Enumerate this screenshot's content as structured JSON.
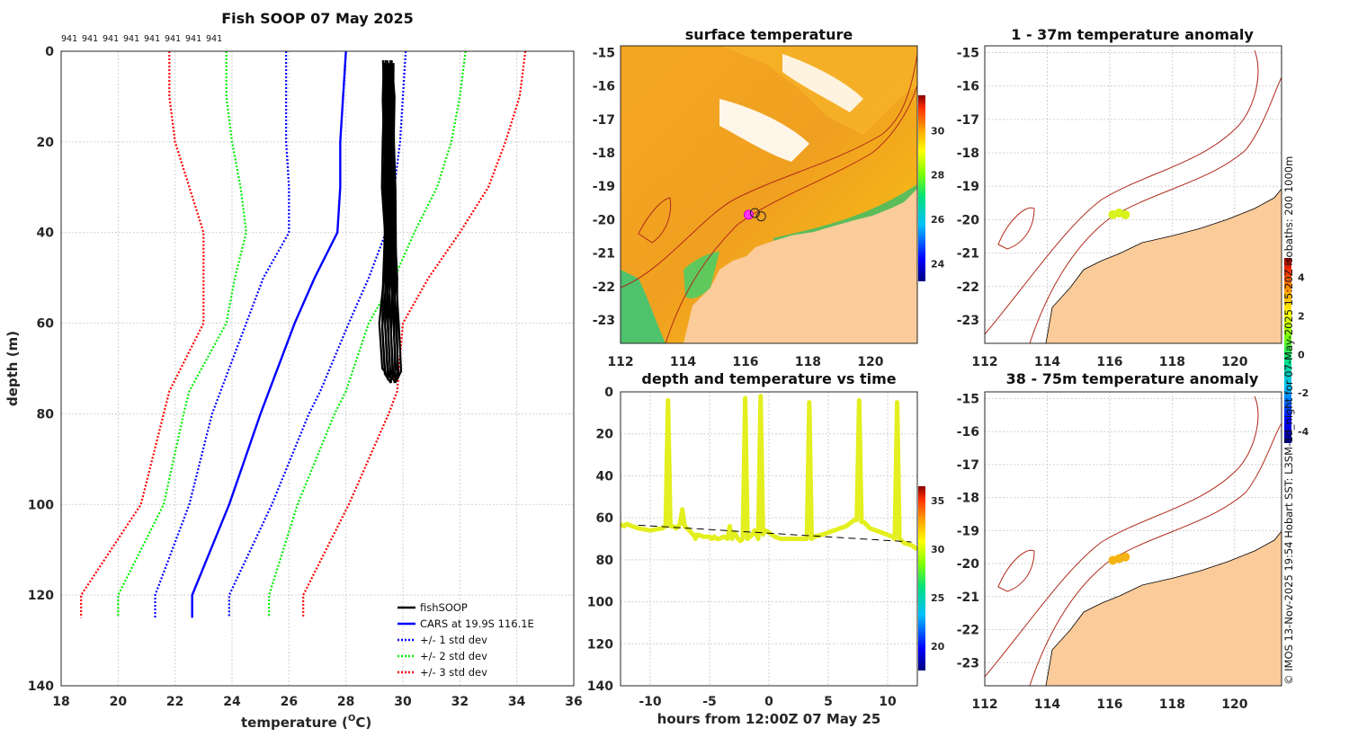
{
  "figure": {
    "credit": "© IMOS 13-Nov-2025 19:54 Hobart SST: L3SM-1d_night for 07-May-2025 15:20Z isobaths: 200  1000m",
    "colors": {
      "land": "#fbcb9a",
      "isobath": "#b02a1a",
      "grid": "#d0d0d0"
    }
  },
  "chart_data": [
    {
      "id": "profile",
      "type": "line",
      "title": "Fish SOOP 07 May 2025",
      "top_labels": [
        "941",
        "941",
        "941",
        "941",
        "941",
        "941",
        "941",
        "941"
      ],
      "xlabel": "temperature (°C)",
      "xlabel_main": "temperature (",
      "xlabel_sup": "O",
      "xlabel_tail": "C)",
      "ylabel": "depth (m)",
      "xlim": [
        18,
        36
      ],
      "ylim": [
        0,
        140
      ],
      "xticks": [
        "18",
        "20",
        "22",
        "24",
        "26",
        "28",
        "30",
        "32",
        "34",
        "36"
      ],
      "yticks": [
        "0",
        "20",
        "40",
        "60",
        "80",
        "100",
        "120",
        "140"
      ],
      "depth": [
        0,
        10,
        20,
        30,
        40,
        50,
        60,
        75,
        80,
        100,
        120,
        125
      ],
      "series": [
        {
          "name": "CARS at 19.9S 116.1E",
          "color": "#0000ff",
          "style": "solid",
          "values": [
            28.0,
            27.9,
            27.8,
            27.8,
            27.7,
            26.9,
            26.2,
            25.3,
            25.0,
            23.9,
            22.6,
            22.6
          ]
        },
        {
          "name": "CARS -1sd",
          "color": "#0000ff",
          "style": "dotted",
          "values": [
            25.9,
            25.9,
            25.9,
            26.0,
            26.0,
            25.1,
            24.5,
            23.6,
            23.3,
            22.5,
            21.3,
            21.3
          ]
        },
        {
          "name": "CARS +1sd",
          "color": "#0000ff",
          "style": "dotted",
          "values": [
            30.1,
            30.0,
            29.9,
            29.7,
            29.4,
            28.8,
            28.1,
            27.1,
            26.7,
            25.4,
            23.9,
            23.9
          ]
        },
        {
          "name": "CARS -2sd",
          "color": "#00ee00",
          "style": "dotted",
          "values": [
            23.8,
            23.8,
            24.0,
            24.3,
            24.5,
            24.1,
            23.8,
            22.5,
            22.3,
            21.6,
            20.0,
            20.0
          ]
        },
        {
          "name": "CARS +2sd",
          "color": "#00ee00",
          "style": "dotted",
          "values": [
            32.2,
            32.0,
            31.7,
            31.2,
            30.4,
            29.7,
            28.8,
            28.0,
            27.6,
            26.3,
            25.3,
            25.3
          ]
        },
        {
          "name": "CARS -3sd",
          "color": "#ff0000",
          "style": "dotted",
          "values": [
            21.8,
            21.8,
            22.0,
            22.5,
            23.0,
            23.0,
            23.0,
            21.8,
            21.6,
            20.8,
            18.7,
            18.7
          ]
        },
        {
          "name": "CARS +3sd",
          "color": "#ff0000",
          "style": "dotted",
          "values": [
            34.3,
            34.1,
            33.6,
            33.0,
            32.0,
            30.9,
            30.0,
            29.8,
            29.5,
            28.1,
            26.5,
            26.5
          ]
        }
      ],
      "fishsoop": {
        "name": "fishSOOP",
        "color": "#000000",
        "depth": [
          2,
          10,
          20,
          30,
          40,
          50,
          60,
          70,
          72
        ],
        "temp_left": [
          29.3,
          29.3,
          29.3,
          29.3,
          29.35,
          29.3,
          29.2,
          29.3,
          29.5
        ],
        "temp_right": [
          29.65,
          29.7,
          29.7,
          29.7,
          29.75,
          29.8,
          29.85,
          29.9,
          29.8
        ]
      },
      "legend": [
        {
          "label": "fishSOOP",
          "color": "#000000",
          "style": "solid"
        },
        {
          "label": "CARS at 19.9S 116.1E",
          "color": "#0000ff",
          "style": "solid"
        },
        {
          "label": "+/- 1 std dev",
          "color": "#0000ff",
          "style": "dotted"
        },
        {
          "label": "+/- 2 std dev",
          "color": "#00ee00",
          "style": "dotted"
        },
        {
          "label": "+/- 3 std dev",
          "color": "#ff0000",
          "style": "dotted"
        }
      ]
    },
    {
      "id": "sst_map",
      "type": "heatmap",
      "title": "surface temperature",
      "xlim": [
        112,
        121.5
      ],
      "ylim": [
        -23.7,
        -14.8
      ],
      "xticks": [
        "112",
        "114",
        "116",
        "118",
        "120"
      ],
      "yticks": [
        "-15",
        "-16",
        "-17",
        "-18",
        "-19",
        "-20",
        "-21",
        "-22",
        "-23"
      ],
      "colorbar": {
        "ticks": [
          "24",
          "26",
          "28",
          "30"
        ],
        "range": [
          23.2,
          31.6
        ]
      },
      "vessel_positions": [
        [
          116.1,
          -19.85
        ],
        [
          116.3,
          -19.8
        ],
        [
          116.5,
          -19.9
        ]
      ]
    },
    {
      "id": "time_series",
      "type": "scatter",
      "title": "depth and temperature vs time",
      "xlabel": "hours from 12:00Z 07 May 25",
      "xlim": [
        -12.5,
        12.5
      ],
      "ylim": [
        0,
        140
      ],
      "xticks": [
        "-10",
        "-5",
        "0",
        "5",
        "10"
      ],
      "yticks": [
        "0",
        "20",
        "40",
        "60",
        "80",
        "100",
        "120",
        "140"
      ],
      "colorbar": {
        "ticks": [
          "20",
          "25",
          "30",
          "35"
        ],
        "range": [
          17.5,
          36.5
        ]
      },
      "bottom_line": {
        "x": [
          -11,
          12
        ],
        "y": [
          63.5,
          71.5
        ]
      },
      "track": {
        "color": "#e3ef1e",
        "x": [
          -12.5,
          -12.2,
          -12.0,
          -11.5,
          -11.0,
          -10.0,
          -9.0,
          -8.7,
          -8.5,
          -8.3,
          -8.1,
          -7.8,
          -7.5,
          -7.3,
          -7.1,
          -6.9,
          -6.7,
          -6.4,
          -6.3,
          -6.2,
          -6.0,
          -5.5,
          -5.0,
          -4.8,
          -4.6,
          -4.4,
          -4.2,
          -3.8,
          -3.5,
          -3.3,
          -3.1,
          -2.9,
          -2.6,
          -2.4,
          -2.2,
          -2.0,
          -1.8,
          -1.4,
          -1.2,
          -0.9,
          -0.7,
          -0.5,
          -0.3,
          0.0,
          0.5,
          1.0,
          2.0,
          2.8,
          3.0,
          3.2,
          3.4,
          3.6,
          3.8,
          4.5,
          5.5,
          6.5,
          7.2,
          7.4,
          7.6,
          7.8,
          8.0,
          8.5,
          9.5,
          10.4,
          10.6,
          10.8,
          11.0,
          11.4,
          12.0,
          12.5
        ],
        "y": [
          63,
          64,
          63,
          64,
          65,
          66,
          65,
          64,
          4,
          64,
          64,
          65,
          63,
          56,
          64,
          65,
          66,
          68,
          68,
          70,
          68,
          69,
          69,
          70,
          69,
          70,
          70,
          69,
          70,
          64,
          70,
          67,
          70,
          71,
          70,
          3,
          70,
          68,
          66,
          70,
          2,
          68,
          66,
          67,
          69,
          70,
          70,
          70,
          70,
          70,
          5,
          70,
          69,
          68,
          66,
          64,
          61,
          61,
          4,
          62,
          62,
          65,
          67,
          69,
          70,
          5,
          70,
          72,
          73,
          75
        ]
      }
    },
    {
      "id": "anom_upper",
      "type": "heatmap",
      "title": "1 - 37m temperature anomaly",
      "xlim": [
        112,
        121.5
      ],
      "ylim": [
        -23.7,
        -14.8
      ],
      "xticks": [
        "112",
        "114",
        "116",
        "118",
        "120"
      ],
      "yticks": [
        "-15",
        "-16",
        "-17",
        "-18",
        "-19",
        "-20",
        "-21",
        "-22",
        "-23"
      ],
      "colorbar": {
        "ticks": [
          "4",
          "2",
          "0",
          "-2",
          "-4"
        ],
        "range": [
          -4.6,
          5.0
        ]
      },
      "anomaly_points": [
        {
          "lon": 116.1,
          "lat": -19.85,
          "value": 1.2
        },
        {
          "lon": 116.3,
          "lat": -19.8,
          "value": 1.3
        },
        {
          "lon": 116.5,
          "lat": -19.85,
          "value": 1.1
        }
      ]
    },
    {
      "id": "anom_lower",
      "type": "heatmap",
      "title": "38 - 75m temperature anomaly",
      "xlim": [
        112,
        121.5
      ],
      "ylim": [
        -23.7,
        -14.8
      ],
      "xticks": [
        "112",
        "114",
        "116",
        "118",
        "120"
      ],
      "yticks": [
        "-15",
        "-16",
        "-17",
        "-18",
        "-19",
        "-20",
        "-21",
        "-22",
        "-23"
      ],
      "anomaly_points": [
        {
          "lon": 116.1,
          "lat": -19.9,
          "value": 2.5
        },
        {
          "lon": 116.3,
          "lat": -19.85,
          "value": 2.6
        },
        {
          "lon": 116.5,
          "lat": -19.8,
          "value": 2.4
        }
      ]
    }
  ]
}
